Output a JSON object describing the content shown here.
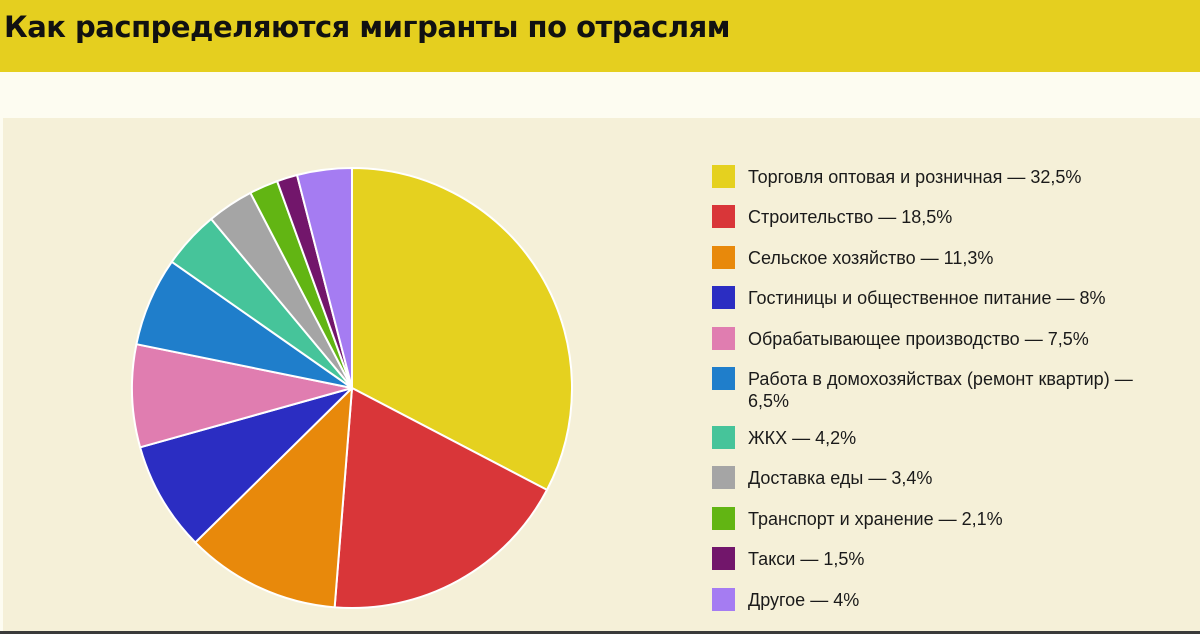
{
  "header": {
    "title": "Как распределяются мигранты по отраслям"
  },
  "colors": {
    "header_bg": "#e5cf1f",
    "panel_bg": "#f5f0d8",
    "page_bg": "#fdfcf1"
  },
  "chart_data": {
    "type": "pie",
    "title": "Как распределяются мигранты по отраслям",
    "legend_position": "right",
    "slices": [
      {
        "label": "Торговля оптовая и розничная — 32,5%",
        "value": 32.5,
        "color": "#e5d11f"
      },
      {
        "label": "Строительство — 18,5%",
        "value": 18.5,
        "color": "#d93639"
      },
      {
        "label": "Сельское хозяйство — 11,3%",
        "value": 11.3,
        "color": "#e8890b"
      },
      {
        "label": "Гостиницы и общественное питание — 8%",
        "value": 8,
        "color": "#2b2dc2"
      },
      {
        "label": "Обрабатывающее производство — 7,5%",
        "value": 7.5,
        "color": "#e07db0"
      },
      {
        "label": "Работа в домохозяйствах (ремонт квартир) — 6,5%",
        "value": 6.5,
        "color": "#1f7ecb"
      },
      {
        "label": "ЖКХ — 4,2%",
        "value": 4.2,
        "color": "#46c49a"
      },
      {
        "label": "Доставка еды — 3,4%",
        "value": 3.4,
        "color": "#a5a5a5"
      },
      {
        "label": "Транспорт и хранение — 2,1%",
        "value": 2.1,
        "color": "#62b513"
      },
      {
        "label": "Такси — 1,5%",
        "value": 1.5,
        "color": "#72166b"
      },
      {
        "label": "Другое — 4%",
        "value": 4,
        "color": "#a57cf2"
      }
    ]
  }
}
